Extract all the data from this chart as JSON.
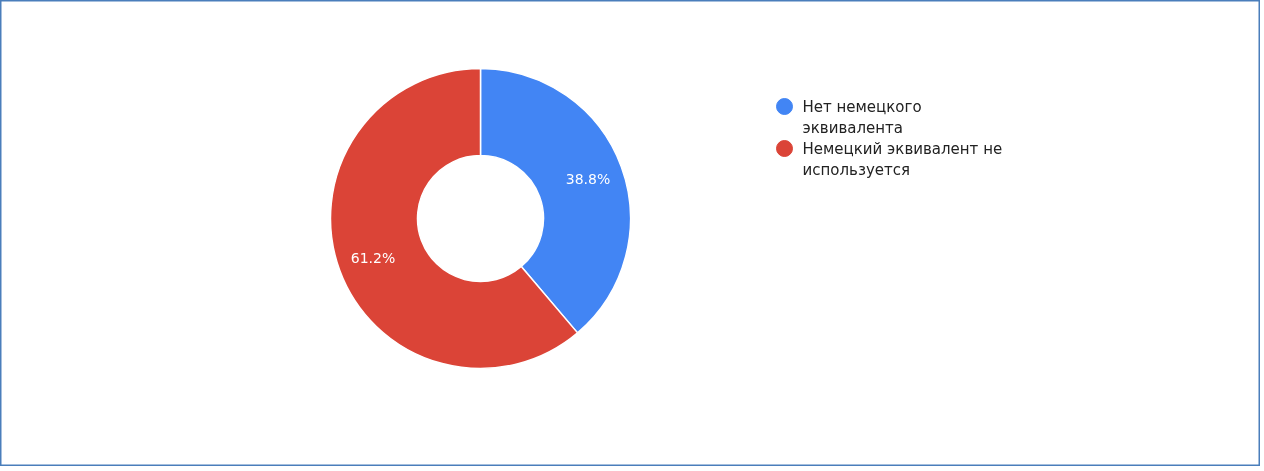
{
  "chart_data": {
    "type": "donut",
    "categories": [
      "Нет немецкого эквивалента",
      "Немецкий эквивалент не используется"
    ],
    "values": [
      38.8,
      61.2
    ],
    "colors": [
      "#4285f4",
      "#db4437"
    ],
    "value_labels": [
      "38.8%",
      "61.2%"
    ],
    "legend": "right"
  }
}
